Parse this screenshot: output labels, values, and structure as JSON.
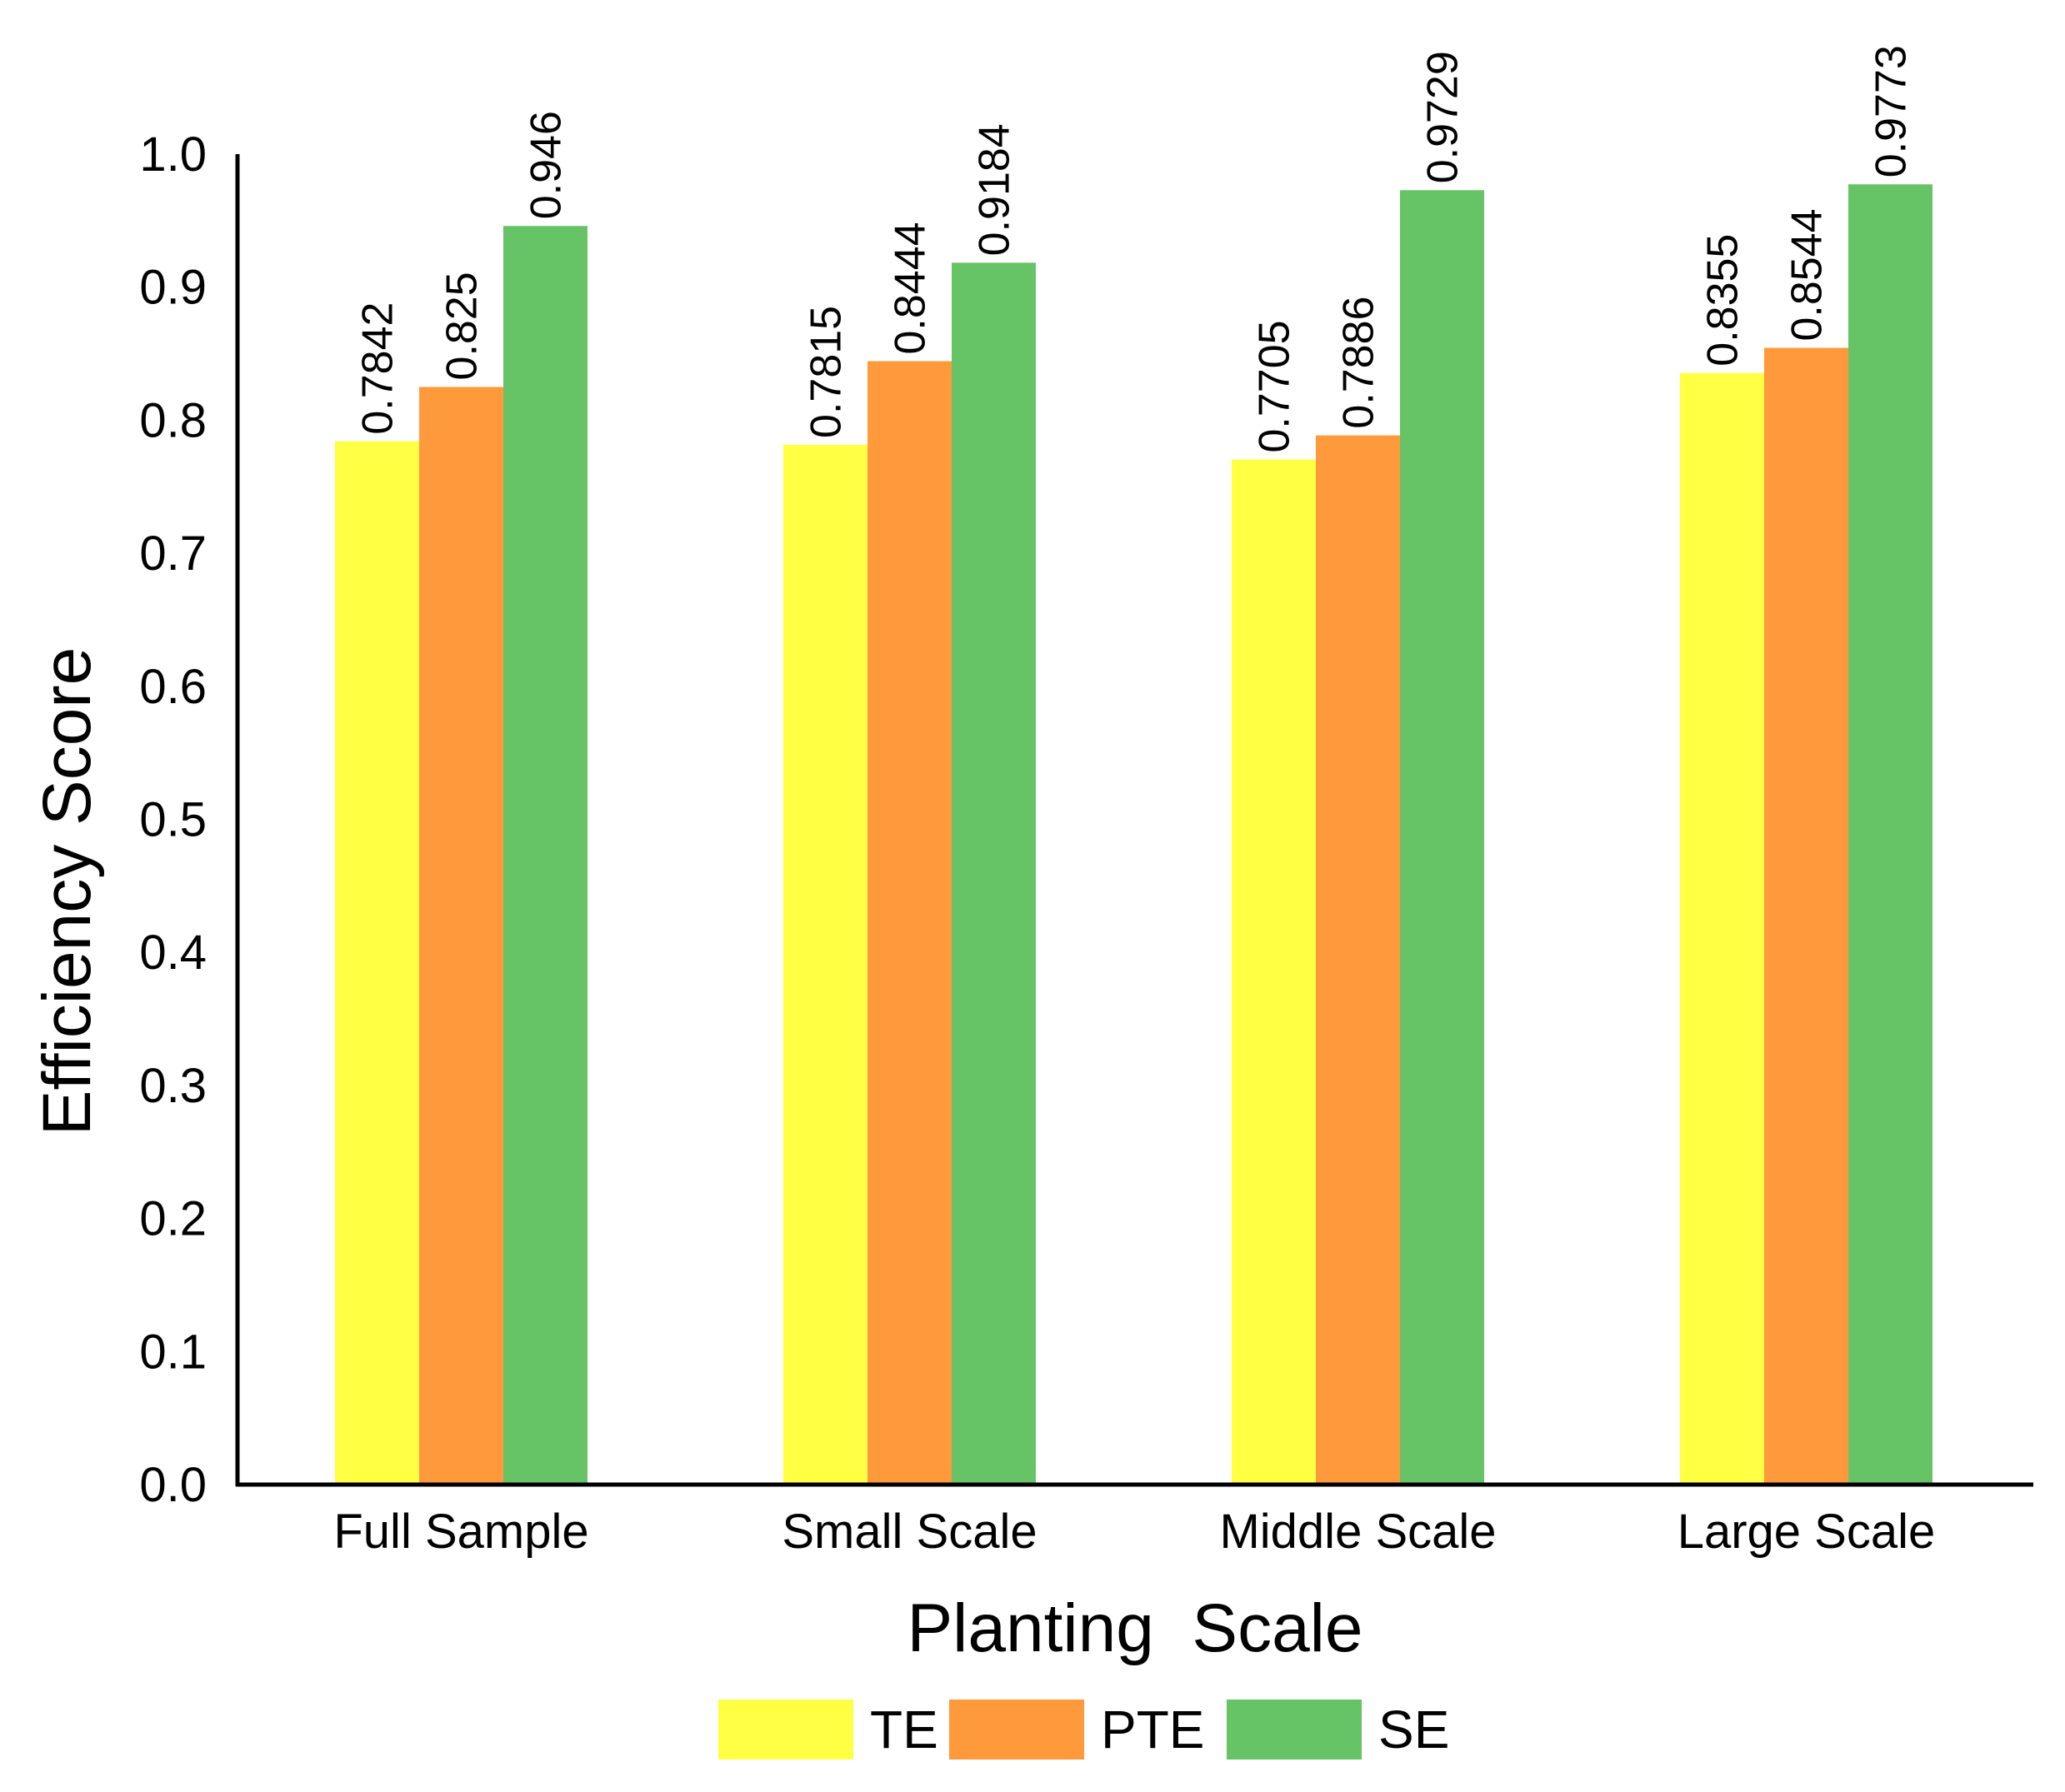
{
  "chart_data": {
    "type": "bar",
    "title": "",
    "xlabel": "Planting  Scale",
    "ylabel": "Efficiency  Score",
    "ylim": [
      0,
      1.0
    ],
    "yticks": [
      0.0,
      0.1,
      0.2,
      0.3,
      0.4,
      0.5,
      0.6,
      0.7,
      0.8,
      0.9,
      1.0
    ],
    "ytick_labels": [
      "0.0",
      "0.1",
      "0.2",
      "0.3",
      "0.4",
      "0.5",
      "0.6",
      "0.7",
      "0.8",
      "0.9",
      "1.0"
    ],
    "categories": [
      "Full Sample",
      "Small Scale",
      "Middle Scale",
      "Large Scale"
    ],
    "series": [
      {
        "name": "TE",
        "color": "#ffff44",
        "values": [
          0.7842,
          0.7815,
          0.7705,
          0.8355
        ],
        "labels": [
          "0.7842",
          "0.7815",
          "0.7705",
          "0.8355"
        ]
      },
      {
        "name": "PTE",
        "color": "#ff9a3c",
        "values": [
          0.825,
          0.8444,
          0.7886,
          0.8544
        ],
        "labels": [
          "0.825",
          "0.8444",
          "0.7886",
          "0.8544"
        ]
      },
      {
        "name": "SE",
        "color": "#66c466",
        "values": [
          0.946,
          0.9184,
          0.9729,
          0.9773
        ],
        "labels": [
          "0.946",
          "0.9184",
          "0.9729",
          "0.9773"
        ]
      }
    ],
    "legend": "bottom-center",
    "grid": false
  }
}
